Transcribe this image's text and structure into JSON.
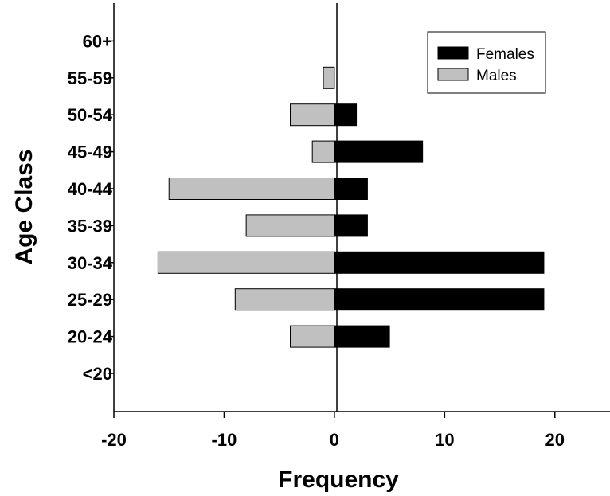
{
  "chart_data": {
    "type": "bar",
    "orientation": "horizontal",
    "categories": [
      "<20",
      "20-24",
      "25-29",
      "30-34",
      "35-39",
      "40-44",
      "45-49",
      "50-54",
      "55-59",
      "60+"
    ],
    "series": [
      {
        "name": "Females",
        "values": [
          0,
          5,
          19,
          19,
          3,
          3,
          8,
          2,
          0,
          0
        ],
        "color": "#000000"
      },
      {
        "name": "Males",
        "values": [
          0,
          -4,
          -9,
          -16,
          -8,
          -15,
          -2,
          -4,
          -1,
          0
        ],
        "color": "#c0c0c0"
      }
    ],
    "xlabel": "Frequency",
    "ylabel": "Age Class",
    "xlim": [
      -20,
      25
    ],
    "xticks": [
      -20,
      -10,
      0,
      10,
      20
    ],
    "legend_position": "top-right",
    "grid": false
  }
}
